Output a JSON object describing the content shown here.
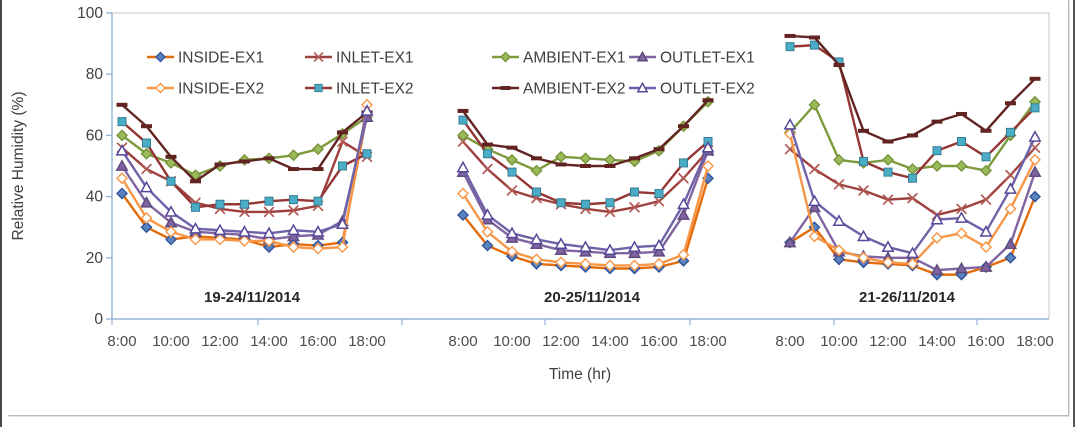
{
  "page": {
    "background": "#FFFFFF",
    "text_color": "#404040"
  },
  "chart": {
    "y_ticks": [
      "0",
      "20",
      "40",
      "60",
      "80",
      "100"
    ],
    "x_tick_labels": [
      "8:00",
      "10:00",
      "12:00",
      "14:00",
      "16:00",
      "18:00"
    ],
    "axis_color": "#95B3D7",
    "border_color": "#C6C6C6"
  },
  "chart_data": {
    "type": "line",
    "title": "",
    "ylabel": "Relative Humidity (%)",
    "xlabel": "Time (hr)",
    "ylim": [
      0,
      100
    ],
    "grid": false,
    "legend_position": "top-inside-two-rows",
    "x_hours": [
      "8:00",
      "9:00",
      "10:00",
      "11:00",
      "12:00",
      "13:00",
      "14:00",
      "15:00",
      "16:00",
      "17:00",
      "18:00"
    ],
    "legend_rows": [
      [
        "INSIDE-EX1",
        "INLET-EX1",
        "AMBIENT-EX1",
        "OUTLET-EX1"
      ],
      [
        "INSIDE-EX2",
        "INLET-EX2",
        "AMBIENT-EX2",
        "OUTLET-EX2"
      ]
    ],
    "series_styles": [
      {
        "name": "INSIDE-EX1",
        "line_color": "#E36C0A",
        "marker": "diamond-filled",
        "marker_fill": "#5B83C0",
        "marker_stroke": "#31539B",
        "icon": "blue-diamond-marker-icon"
      },
      {
        "name": "INLET-EX1",
        "line_color": "#9E413E",
        "marker": "x-cross",
        "marker_fill": "none",
        "marker_stroke": "#B15A55",
        "icon": "x-cross-marker-icon"
      },
      {
        "name": "AMBIENT-EX1",
        "line_color": "#7E9A3D",
        "marker": "diamond-filled",
        "marker_fill": "#9BBB59",
        "marker_stroke": "#77933C",
        "icon": "green-diamond-marker-icon"
      },
      {
        "name": "OUTLET-EX1",
        "line_color": "#8064A2",
        "marker": "triangle-filled",
        "marker_fill": "#8064A2",
        "marker_stroke": "#5F4B7E",
        "icon": "purple-triangle-marker-icon"
      },
      {
        "name": "INSIDE-EX2",
        "line_color": "#F79646",
        "marker": "diamond-open",
        "marker_fill": "#FFFFFF",
        "marker_stroke": "#F79646",
        "icon": "open-diamond-marker-icon"
      },
      {
        "name": "INLET-EX2",
        "line_color": "#943634",
        "marker": "square-filled",
        "marker_fill": "#4BACC6",
        "marker_stroke": "#357D95",
        "icon": "cyan-square-marker-icon"
      },
      {
        "name": "AMBIENT-EX2",
        "line_color": "#622423",
        "marker": "dash",
        "marker_fill": "#622423",
        "marker_stroke": "#622423",
        "icon": "dash-marker-icon"
      },
      {
        "name": "OUTLET-EX2",
        "line_color": "#6F62A8",
        "marker": "triangle-open",
        "marker_fill": "#FFFFFF",
        "marker_stroke": "#55489B",
        "icon": "open-triangle-marker-icon"
      }
    ],
    "panels": [
      {
        "label": "19-24/11/2014",
        "series": {
          "INSIDE-EX1": [
            41,
            30,
            26,
            27,
            26.5,
            26,
            23.5,
            24.5,
            24,
            25,
            67
          ],
          "INLET-EX1": [
            56,
            49,
            45,
            38,
            36,
            35,
            35,
            35.5,
            37,
            58,
            53
          ],
          "AMBIENT-EX1": [
            60,
            54,
            51,
            47,
            50,
            52,
            52.5,
            53.5,
            55.5,
            60.5,
            66
          ],
          "OUTLET-EX1": [
            50,
            38,
            31.5,
            28.5,
            28,
            27.5,
            26,
            27,
            27.5,
            32,
            66
          ],
          "INSIDE-EX2": [
            46,
            33,
            28.5,
            26,
            26,
            25.5,
            25.5,
            23.5,
            23,
            23.5,
            70
          ],
          "INLET-EX2": [
            64.5,
            57.5,
            45,
            36.5,
            37.5,
            37.5,
            38.5,
            39,
            38.5,
            50,
            54
          ],
          "AMBIENT-EX2": [
            70,
            63,
            53,
            45,
            50.5,
            51.5,
            52.5,
            49,
            49,
            61,
            67.5
          ],
          "OUTLET-EX2": [
            55,
            43,
            35,
            29.5,
            29,
            28.5,
            28,
            29,
            28.5,
            31,
            68
          ]
        }
      },
      {
        "label": "20-25/11/2014",
        "series": {
          "INSIDE-EX1": [
            34,
            24,
            20.5,
            18,
            17.5,
            17,
            16.5,
            16.5,
            17,
            19,
            46
          ],
          "INLET-EX1": [
            58,
            49,
            42,
            39.5,
            37.5,
            36,
            35,
            36.5,
            38.5,
            46,
            55
          ],
          "AMBIENT-EX1": [
            60,
            55.5,
            52,
            48.5,
            53,
            52.5,
            52,
            51.5,
            55,
            63,
            71
          ],
          "OUTLET-EX1": [
            48,
            32.5,
            26.5,
            24.5,
            22.5,
            22,
            21.5,
            21.5,
            22,
            34,
            55
          ],
          "INSIDE-EX2": [
            41,
            28.5,
            22,
            19.5,
            18.5,
            18,
            17.5,
            17.5,
            18,
            21,
            50
          ],
          "INLET-EX2": [
            65,
            54,
            48,
            41.5,
            38,
            37.5,
            38,
            41.5,
            41,
            51,
            58
          ],
          "AMBIENT-EX2": [
            68,
            57,
            56,
            52.5,
            50.5,
            50,
            50,
            52.5,
            55.5,
            63,
            71.5
          ],
          "OUTLET-EX2": [
            49.5,
            34,
            28,
            26,
            24.5,
            23.5,
            22.5,
            23.5,
            24,
            37.5,
            56
          ]
        }
      },
      {
        "label": "21-26/11/2014",
        "series": {
          "INSIDE-EX1": [
            25,
            30,
            19.5,
            18.5,
            18,
            17.5,
            14.5,
            14.5,
            17,
            20,
            40
          ],
          "INLET-EX1": [
            55.5,
            49,
            44,
            42,
            39,
            39.5,
            34,
            36,
            39,
            47,
            56
          ],
          "AMBIENT-EX1": [
            61,
            70,
            52,
            51,
            52,
            49,
            50,
            50,
            48.5,
            60,
            71
          ],
          "OUTLET-EX1": [
            25,
            36.5,
            22,
            20.5,
            20,
            20,
            16,
            16.5,
            17,
            24.5,
            48
          ],
          "INSIDE-EX2": [
            60.5,
            27,
            22.5,
            20,
            18.5,
            18,
            26.5,
            28,
            23.5,
            36,
            52
          ],
          "INLET-EX2": [
            89,
            89.5,
            84,
            51.5,
            48,
            46,
            55,
            58,
            53,
            61,
            69
          ],
          "AMBIENT-EX2": [
            92.5,
            92,
            83,
            61.5,
            58,
            60,
            64.5,
            67,
            61.5,
            70.5,
            78.5
          ],
          "OUTLET-EX2": [
            63.5,
            38.5,
            32,
            27,
            23.5,
            21.5,
            32.5,
            33,
            28.5,
            42.5,
            59.5
          ]
        }
      }
    ]
  }
}
